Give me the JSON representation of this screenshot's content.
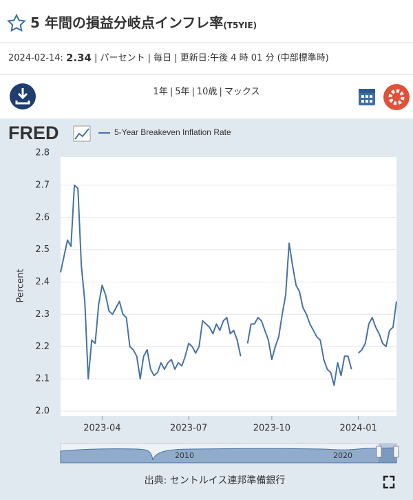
{
  "header": {
    "title": "5 年間の損益分岐点インフレ率",
    "series_id": "(T5YIE)"
  },
  "info": {
    "date": "2024-02-14:",
    "value": 2.34,
    "details": "| パーセント | 毎日 | 更新日:午後 4 時 01 分 (中部標準時)"
  },
  "toolbar": {
    "ranges": [
      "1年",
      "5年",
      "10歳",
      "マックス"
    ],
    "separator": "|"
  },
  "logo": "FRED",
  "chart_data": {
    "type": "line",
    "ylabel": "Percent",
    "categories": [
      null,
      null,
      null,
      null,
      null,
      null,
      null,
      null,
      null,
      null,
      null,
      null,
      "2023-04",
      null,
      null,
      null,
      null,
      null,
      null,
      null,
      null,
      null,
      null,
      null,
      null,
      null,
      null,
      null,
      null,
      null,
      null,
      null,
      null,
      null,
      null,
      null,
      null,
      "2023-07",
      null,
      null,
      null,
      null,
      null,
      null,
      null,
      null,
      null,
      null,
      null,
      null,
      null,
      null,
      null,
      null,
      null,
      null,
      null,
      null,
      null,
      null,
      null,
      "2023-10",
      null,
      null,
      null,
      null,
      null,
      null,
      null,
      null,
      null,
      null,
      null,
      null,
      null,
      null,
      null,
      null,
      null,
      null,
      null,
      null,
      null,
      null,
      null,
      null,
      "2024-01",
      null,
      null,
      null,
      null,
      null,
      null,
      null,
      null,
      null,
      null,
      null
    ],
    "series": [
      {
        "name": "5-Year Breakeven Inflation Rate",
        "color": "#4572a7",
        "values": [
          2.43,
          2.48,
          2.53,
          2.51,
          2.7,
          2.69,
          2.45,
          2.34,
          2.1,
          2.22,
          2.21,
          2.33,
          2.39,
          2.36,
          2.31,
          2.3,
          2.32,
          2.34,
          2.3,
          2.29,
          2.2,
          2.19,
          2.17,
          2.1,
          2.17,
          2.19,
          2.13,
          2.11,
          2.12,
          2.15,
          2.13,
          2.15,
          2.16,
          2.13,
          2.15,
          2.14,
          2.17,
          2.21,
          2.2,
          2.18,
          2.2,
          2.28,
          2.27,
          2.26,
          2.24,
          2.27,
          2.25,
          2.28,
          2.29,
          2.24,
          2.25,
          2.22,
          2.17,
          null,
          2.21,
          2.27,
          2.27,
          2.29,
          2.28,
          2.25,
          2.22,
          2.16,
          2.2,
          2.23,
          2.3,
          2.36,
          2.52,
          2.45,
          2.39,
          2.37,
          2.32,
          2.3,
          2.27,
          2.25,
          2.23,
          2.22,
          2.16,
          2.13,
          2.12,
          2.08,
          2.15,
          2.11,
          2.17,
          2.17,
          2.13,
          null,
          2.18,
          2.19,
          2.21,
          2.27,
          2.29,
          2.26,
          2.24,
          2.21,
          2.2,
          2.25,
          2.26,
          2.34
        ]
      }
    ],
    "ylim": [
      2.0,
      2.8
    ],
    "yticks": [
      {
        "value": 2.0,
        "label": "2.0"
      },
      2.1,
      2.2,
      2.3,
      2.4,
      2.5,
      2.6,
      2.7,
      2.8
    ],
    "grid": true
  },
  "navigator": {
    "labels": [
      "2010",
      "2020"
    ]
  },
  "footer": {
    "source": "出典: セントルイス連邦準備銀行"
  }
}
